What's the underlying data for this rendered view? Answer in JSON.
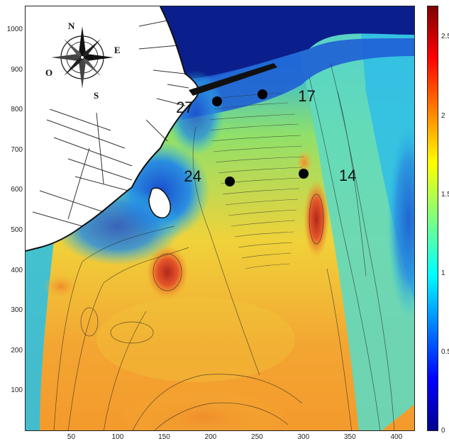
{
  "x_axis": {
    "ticks": [
      "50",
      "100",
      "150",
      "200",
      "250",
      "300",
      "350",
      "400"
    ],
    "range": [
      0,
      420
    ]
  },
  "y_axis": {
    "ticks": [
      "100",
      "200",
      "300",
      "400",
      "500",
      "600",
      "700",
      "800",
      "900",
      "1000"
    ],
    "range": [
      0,
      1060
    ]
  },
  "colorbar": {
    "labels": [
      "0",
      "0.5",
      "1",
      "1.5",
      "2",
      "2.5"
    ],
    "range": [
      0,
      2.7
    ]
  },
  "stations": [
    {
      "label": "27",
      "x": 207,
      "y": 822
    },
    {
      "label": "17",
      "x": 256,
      "y": 840
    },
    {
      "label": "24",
      "x": 221,
      "y": 622
    },
    {
      "label": "14",
      "x": 300,
      "y": 642
    }
  ],
  "compass": {
    "north": "N",
    "east": "E",
    "west": "O",
    "south": "S"
  },
  "colors": {
    "deep_blue": "#0b1f8c",
    "blue": "#1f5fd6",
    "cyan": "#27c4e0",
    "green": "#7fe07a",
    "yellow": "#f5dc3a",
    "orange": "#f39a2c",
    "red": "#c9301c",
    "dark_red": "#7a0a0a"
  }
}
